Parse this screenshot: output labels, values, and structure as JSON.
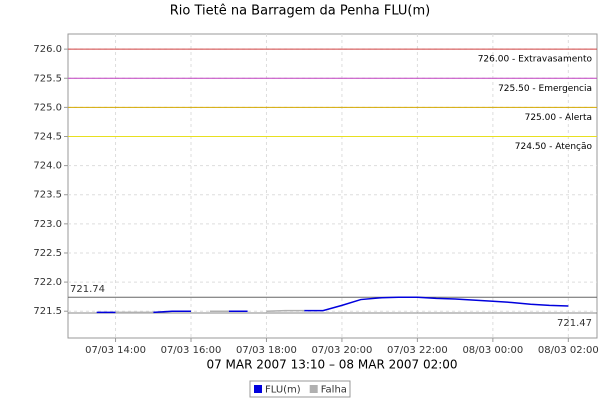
{
  "chart_data": {
    "type": "line",
    "title": "Rio Tietê na Barragem da Penha FLU(m)",
    "x_label": "07 MAR 2007 13:10 – 08 MAR 2007 02:00",
    "x": [
      13.5,
      14,
      14.5,
      15,
      15.5,
      16,
      16.5,
      17,
      17.5,
      18,
      18.5,
      19,
      19.5,
      20,
      20.5,
      21,
      21.5,
      22,
      22.5,
      23,
      23.5,
      24,
      24.5,
      25,
      25.5,
      26
    ],
    "series": [
      {
        "name": "FLU(m)",
        "color": "#0000dd",
        "values": [
          721.48,
          721.48,
          null,
          721.48,
          721.5,
          721.5,
          null,
          721.5,
          721.5,
          null,
          null,
          721.51,
          721.51,
          721.6,
          721.7,
          721.73,
          721.74,
          721.74,
          721.72,
          721.71,
          721.69,
          721.67,
          721.65,
          721.62,
          721.6,
          721.59
        ]
      },
      {
        "name": "Falha",
        "color": "#b0b0b0",
        "values": [
          null,
          721.48,
          721.48,
          721.48,
          null,
          null,
          721.5,
          721.5,
          null,
          721.5,
          721.51,
          721.51,
          null,
          null,
          null,
          null,
          null,
          null,
          null,
          null,
          null,
          null,
          null,
          null,
          null,
          null
        ]
      }
    ],
    "xlim": [
      12.74,
      26.76
    ],
    "xticks": [
      {
        "value": 14,
        "label": "07/03 14:00"
      },
      {
        "value": 16,
        "label": "07/03 16:00"
      },
      {
        "value": 18,
        "label": "07/03 18:00"
      },
      {
        "value": 20,
        "label": "07/03 20:00"
      },
      {
        "value": 22,
        "label": "07/03 22:00"
      },
      {
        "value": 24,
        "label": "08/03 00:00"
      },
      {
        "value": 26,
        "label": "08/03 02:00"
      }
    ],
    "ylim": [
      721.04,
      726.26
    ],
    "yticks": [
      721.5,
      {
        "value": 722,
        "label": "722.0"
      },
      722.5,
      {
        "value": 723,
        "label": "723.0"
      },
      723.5,
      {
        "value": 724,
        "label": "724.0"
      },
      724.5,
      {
        "value": 725,
        "label": "725.0"
      },
      725.5,
      {
        "value": 726,
        "label": "726.0"
      }
    ],
    "grid": true,
    "thresholds": [
      {
        "value": 726,
        "label": "726.00 - Extravasamento",
        "color": "#d04040"
      },
      {
        "value": 725.5,
        "label": "725.50 - Emergencia",
        "color": "#c040c0"
      },
      {
        "value": 725,
        "label": "725.00 - Alerta",
        "color": "#d4a800"
      },
      {
        "value": 724.5,
        "label": "724.50 - Atenção",
        "color": "#e8e020"
      }
    ],
    "markers": [
      {
        "value": 721.74,
        "label": "721.74",
        "color": "#666666",
        "side": "left"
      },
      {
        "value": 721.47,
        "label": "721.47",
        "color": "#888888",
        "side": "right"
      }
    ]
  }
}
